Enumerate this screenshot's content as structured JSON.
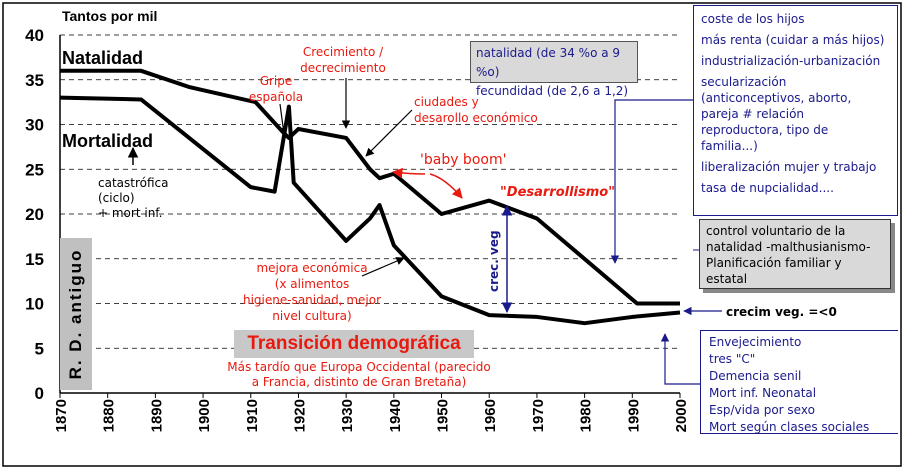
{
  "chart_data": {
    "type": "line",
    "x_start": 1870,
    "x_end": 2000,
    "x_ticks": [
      "1870",
      "1880",
      "1890",
      "1900",
      "1910",
      "1920",
      "1930",
      "1940",
      "1950",
      "1960",
      "1970",
      "1980",
      "1990",
      "2000"
    ],
    "y_ticks": [
      "0",
      "5",
      "10",
      "15",
      "20",
      "25",
      "30",
      "35",
      "40"
    ],
    "ylim": [
      0,
      40
    ],
    "ylabel": "Tantos por mil",
    "grid": "dashed horizontal",
    "series": [
      {
        "name": "Natalidad",
        "x": [
          1870,
          1887,
          1897,
          1911,
          1917,
          1918,
          1920,
          1930,
          1935,
          1937,
          1940,
          1950,
          1960,
          1970,
          1991,
          2000
        ],
        "y": [
          36,
          36,
          34.2,
          32.5,
          29,
          28.5,
          29.5,
          28.5,
          25,
          24,
          24.5,
          20,
          21.5,
          19.5,
          10,
          10
        ]
      },
      {
        "name": "Mortalidad",
        "x": [
          1870,
          1887,
          1910,
          1915,
          1918,
          1919,
          1930,
          1935,
          1937,
          1940,
          1950,
          1960,
          1970,
          1980,
          1990,
          2000
        ],
        "y": [
          33,
          32.8,
          23,
          22.5,
          32,
          23.5,
          17,
          19.5,
          21,
          16.5,
          10.8,
          8.7,
          8.5,
          7.8,
          8.5,
          9
        ]
      }
    ]
  },
  "labels": {
    "natalidad": "Natalidad",
    "mortalidad": "Mortalidad",
    "gripe": [
      "Gripe",
      "española"
    ],
    "crecimiento": [
      "Crecimiento /",
      "decrecimiento"
    ],
    "ciudades": [
      "ciudades y",
      "desarollo económico"
    ],
    "baby_boom": "'baby boom'",
    "desarrollismo": "\"Desarrollismo\"",
    "catastrofica": [
      "catastrófica",
      "(ciclo)",
      "+ mort inf."
    ],
    "mejora": [
      "mejora económica",
      "(x alimentos",
      "higiene-sanidad, mejor",
      "nivel cultura)"
    ],
    "crec_veg": "crec. veg",
    "crecim_veg": "crecim veg. =<0",
    "rd_antiguo": "R. D. antiguo",
    "transicion_title": "Transición demográfica",
    "transicion_sub": [
      "Más tardío que Europa Occidental (parecido",
      "a Francia, distinto de Gran Bretaña)"
    ]
  },
  "box_natalidad": [
    "natalidad (de 34 %o a 9 %o)",
    "fecundidad (de 2,6 a 1,2)"
  ],
  "box_causes": {
    "items": [
      [
        "coste de los hijos"
      ],
      [
        "más renta (cuidar a más hijos)"
      ],
      [
        "industrialización-urbanización"
      ],
      [
        "secularización",
        "(anticonceptivos, aborto,",
        "pareja # relación",
        "reproductora, tipo de",
        "familia...)"
      ],
      [
        "liberalización mujer y trabajo"
      ],
      [
        "tasa de nupcialidad...."
      ]
    ]
  },
  "box_control": [
    "control voluntario de la",
    "natalidad -malthusianismo-",
    "Planificación familiar y",
    "estatal"
  ],
  "box_aging": [
    "Envejecimiento",
    "tres \"C\"",
    "Demencia senil",
    "Mort inf. Neonatal",
    "Esp/vida por sexo",
    "Mort según clases sociales"
  ],
  "colors": {
    "red": "#e8190e",
    "blue": "#1a1a8c",
    "gray": "#c0c0c0",
    "series": "#000000"
  }
}
